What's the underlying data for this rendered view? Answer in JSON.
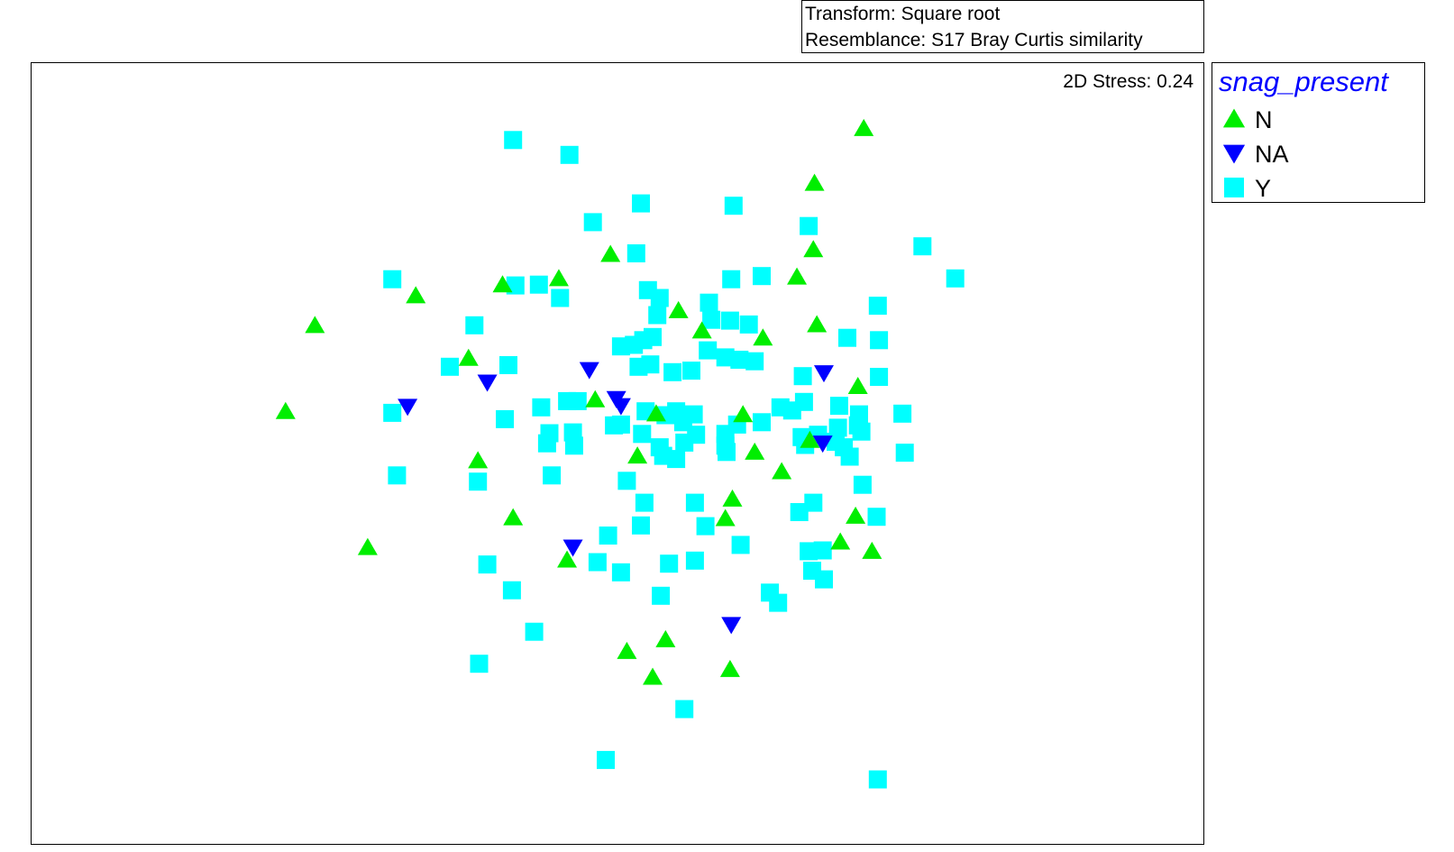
{
  "info_box": {
    "transform_label": "Transform: Square root",
    "resemblance_label": "Resemblance: S17 Bray Curtis similarity"
  },
  "chart_data": {
    "type": "scatter",
    "title": "",
    "xlabel": "",
    "ylabel": "",
    "xlim": [
      0,
      100
    ],
    "ylim": [
      0,
      100
    ],
    "grid": false,
    "axes_visible": false,
    "stress_label": "2D Stress: 0.24",
    "legend": {
      "title": "snag_present",
      "placement": "right-top",
      "title_color": "#0000ff"
    },
    "series": [
      {
        "name": "N",
        "marker": "triangle-up",
        "color": "#00ee00",
        "points": [
          [
            71.0,
            91.6
          ],
          [
            66.8,
            84.6
          ],
          [
            66.7,
            76.1
          ],
          [
            65.3,
            72.6
          ],
          [
            67.0,
            66.5
          ],
          [
            32.8,
            70.2
          ],
          [
            24.2,
            66.4
          ],
          [
            37.3,
            62.2
          ],
          [
            40.2,
            71.6
          ],
          [
            45.0,
            72.4
          ],
          [
            49.4,
            75.5
          ],
          [
            55.2,
            68.3
          ],
          [
            57.2,
            65.7
          ],
          [
            62.4,
            64.8
          ],
          [
            21.7,
            55.4
          ],
          [
            48.1,
            56.9
          ],
          [
            53.3,
            55.1
          ],
          [
            60.7,
            55.0
          ],
          [
            70.5,
            58.6
          ],
          [
            66.4,
            51.7
          ],
          [
            38.1,
            49.1
          ],
          [
            51.7,
            49.7
          ],
          [
            61.7,
            50.2
          ],
          [
            64.0,
            47.7
          ],
          [
            41.1,
            41.8
          ],
          [
            28.7,
            38.0
          ],
          [
            59.8,
            44.2
          ],
          [
            59.2,
            41.7
          ],
          [
            70.3,
            42.0
          ],
          [
            69.0,
            38.7
          ],
          [
            71.7,
            37.5
          ],
          [
            45.7,
            36.4
          ],
          [
            54.1,
            26.2
          ],
          [
            50.8,
            24.7
          ],
          [
            59.6,
            22.4
          ],
          [
            53.0,
            21.4
          ]
        ]
      },
      {
        "name": "NA",
        "marker": "triangle-down",
        "color": "#0000ff",
        "points": [
          [
            32.1,
            56.0
          ],
          [
            38.9,
            59.1
          ],
          [
            47.6,
            60.7
          ],
          [
            49.9,
            57.0
          ],
          [
            50.3,
            56.1
          ],
          [
            67.6,
            60.3
          ],
          [
            67.5,
            51.3
          ],
          [
            46.2,
            38.0
          ],
          [
            59.7,
            28.1
          ]
        ]
      },
      {
        "name": "Y",
        "marker": "square",
        "color": "#00ffff",
        "points": [
          [
            41.1,
            90.1
          ],
          [
            45.9,
            88.2
          ],
          [
            52.0,
            82.0
          ],
          [
            59.9,
            81.7
          ],
          [
            47.9,
            79.6
          ],
          [
            66.3,
            79.1
          ],
          [
            51.6,
            75.6
          ],
          [
            76.0,
            76.5
          ],
          [
            62.3,
            72.7
          ],
          [
            59.7,
            72.3
          ],
          [
            78.8,
            72.4
          ],
          [
            30.8,
            72.3
          ],
          [
            41.3,
            71.5
          ],
          [
            43.3,
            71.6
          ],
          [
            45.1,
            69.9
          ],
          [
            52.6,
            70.9
          ],
          [
            53.6,
            69.9
          ],
          [
            57.8,
            69.3
          ],
          [
            72.2,
            68.9
          ],
          [
            53.4,
            67.7
          ],
          [
            58.0,
            67.1
          ],
          [
            59.6,
            67.0
          ],
          [
            61.2,
            66.5
          ],
          [
            37.8,
            66.4
          ],
          [
            69.6,
            64.8
          ],
          [
            72.3,
            64.5
          ],
          [
            50.3,
            63.7
          ],
          [
            51.4,
            63.9
          ],
          [
            52.2,
            64.5
          ],
          [
            53.0,
            64.9
          ],
          [
            57.7,
            63.2
          ],
          [
            59.2,
            62.3
          ],
          [
            60.4,
            62.0
          ],
          [
            61.7,
            61.8
          ],
          [
            35.7,
            61.1
          ],
          [
            40.7,
            61.3
          ],
          [
            51.8,
            61.1
          ],
          [
            52.8,
            61.4
          ],
          [
            54.7,
            60.4
          ],
          [
            56.3,
            60.6
          ],
          [
            65.8,
            59.9
          ],
          [
            72.3,
            59.8
          ],
          [
            30.8,
            55.2
          ],
          [
            43.5,
            55.9
          ],
          [
            45.7,
            56.7
          ],
          [
            46.6,
            56.7
          ],
          [
            52.4,
            55.4
          ],
          [
            54.1,
            54.9
          ],
          [
            55.0,
            55.4
          ],
          [
            56.5,
            55.0
          ],
          [
            63.9,
            55.9
          ],
          [
            64.9,
            55.5
          ],
          [
            65.9,
            56.6
          ],
          [
            68.9,
            56.1
          ],
          [
            70.6,
            55.0
          ],
          [
            74.3,
            55.1
          ],
          [
            40.4,
            54.4
          ],
          [
            49.7,
            53.6
          ],
          [
            50.3,
            53.7
          ],
          [
            55.6,
            54.0
          ],
          [
            60.2,
            53.7
          ],
          [
            62.3,
            54.0
          ],
          [
            67.1,
            52.4
          ],
          [
            68.8,
            53.3
          ],
          [
            70.5,
            53.6
          ],
          [
            70.8,
            52.8
          ],
          [
            44.2,
            52.6
          ],
          [
            46.2,
            52.7
          ],
          [
            52.1,
            52.5
          ],
          [
            56.7,
            52.4
          ],
          [
            59.2,
            52.5
          ],
          [
            65.7,
            52.1
          ],
          [
            68.6,
            51.5
          ],
          [
            44.0,
            51.3
          ],
          [
            46.3,
            51.0
          ],
          [
            53.6,
            50.8
          ],
          [
            55.7,
            51.4
          ],
          [
            59.2,
            51.0
          ],
          [
            66.0,
            51.1
          ],
          [
            69.3,
            50.8
          ],
          [
            31.2,
            47.2
          ],
          [
            38.1,
            46.4
          ],
          [
            44.4,
            47.2
          ],
          [
            50.8,
            46.5
          ],
          [
            53.9,
            49.7
          ],
          [
            55.0,
            49.3
          ],
          [
            59.3,
            50.2
          ],
          [
            69.8,
            49.6
          ],
          [
            74.5,
            50.1
          ],
          [
            70.9,
            46.0
          ],
          [
            52.3,
            43.7
          ],
          [
            56.6,
            43.7
          ],
          [
            66.7,
            43.7
          ],
          [
            65.5,
            42.5
          ],
          [
            72.1,
            41.9
          ],
          [
            52.0,
            40.8
          ],
          [
            57.5,
            40.7
          ],
          [
            49.2,
            39.5
          ],
          [
            60.5,
            38.3
          ],
          [
            66.3,
            37.5
          ],
          [
            67.5,
            37.6
          ],
          [
            48.3,
            36.1
          ],
          [
            54.4,
            35.9
          ],
          [
            56.6,
            36.3
          ],
          [
            38.9,
            35.8
          ],
          [
            50.3,
            34.8
          ],
          [
            66.6,
            35.0
          ],
          [
            67.6,
            33.9
          ],
          [
            41.0,
            32.5
          ],
          [
            53.7,
            31.8
          ],
          [
            63.0,
            32.2
          ],
          [
            63.7,
            30.9
          ],
          [
            42.9,
            27.2
          ],
          [
            38.2,
            23.1
          ],
          [
            55.7,
            17.3
          ],
          [
            49.0,
            10.8
          ],
          [
            72.2,
            8.3
          ]
        ]
      }
    ]
  }
}
